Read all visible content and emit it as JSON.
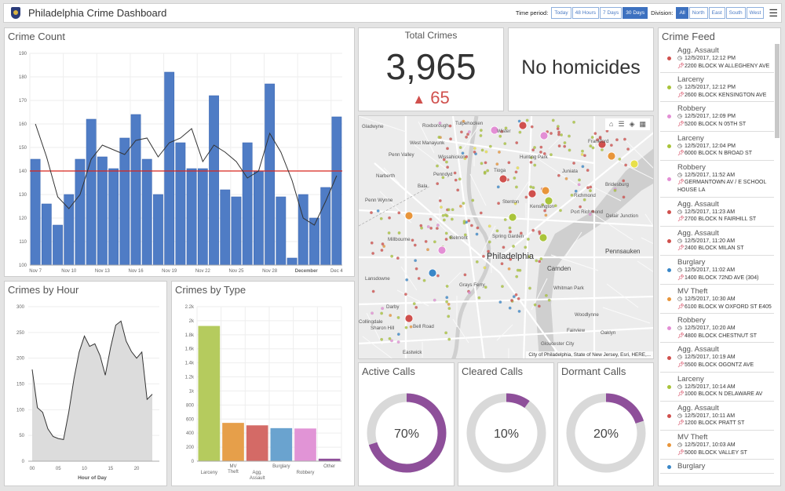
{
  "header": {
    "title": "Philadelphia Crime Dashboard",
    "time_label": "Time period:",
    "time_options": [
      "Today",
      "48 Hours",
      "7 Days",
      "30 Days"
    ],
    "time_selected": "30 Days",
    "division_label": "Division:",
    "division_options": [
      "All",
      "North",
      "East",
      "South",
      "West"
    ],
    "division_selected": "All",
    "menu_icon": "hamburger-icon",
    "logo_icon": "police-badge-icon"
  },
  "total": {
    "title": "Total Crimes",
    "value": "3,965",
    "change": "65",
    "change_icon": "triangle-up-icon",
    "change_color": "#d0504d"
  },
  "homicides": {
    "text": "No homicides"
  },
  "gauges": [
    {
      "title": "Active Calls",
      "value": 70,
      "label": "70%"
    },
    {
      "title": "Cleared Calls",
      "value": 10,
      "label": "10%"
    },
    {
      "title": "Dormant Calls",
      "value": 20,
      "label": "20%"
    }
  ],
  "gauge_color": "#8e4f9a",
  "map": {
    "labels": [
      "Gladwyne",
      "Roxborough",
      "Tulpehocken",
      "Wister",
      "West Manayunk",
      "Penn Valley",
      "Wissahickon",
      "Frankford",
      "Hunting Park",
      "Narberth",
      "Tioga",
      "Juniata",
      "Penndyd",
      "Bala",
      "Bridesburg",
      "Richmond",
      "Penn Wynne",
      "Stenton",
      "Kensington",
      "Port Richmond",
      "Delair Junction",
      "Millbourne",
      "Belmont",
      "Spring Garden",
      "Philadelphia",
      "Pennsauken",
      "Camden",
      "Lansdowne",
      "Grays Ferry",
      "Whitman Park",
      "Darby",
      "Woodlynne",
      "Collingdale",
      "Sharon Hill",
      "Bell Road",
      "Fairview",
      "Oaklyn",
      "Gloucester City",
      "Eastwick"
    ],
    "attribution": "City of Philadelphia, State of New Jersey, Esri, HERE,...",
    "tools": [
      "home-icon",
      "legend-icon",
      "layers-icon",
      "basemap-icon"
    ]
  },
  "feed": {
    "title": "Crime Feed",
    "items": [
      {
        "type": "Agg. Assault",
        "time": "12/5/2017, 12:12 PM",
        "addr": "2200 BLOCK W ALLEGHENY AVE",
        "color": "#d0504d"
      },
      {
        "type": "Larceny",
        "time": "12/5/2017, 12:12 PM",
        "addr": "2600 BLOCK KENSINGTON AVE",
        "color": "#a9c43a"
      },
      {
        "type": "Robbery",
        "time": "12/5/2017, 12:09 PM",
        "addr": "5200 BLOCK N 05TH ST",
        "color": "#e38fd5"
      },
      {
        "type": "Larceny",
        "time": "12/5/2017, 12:04 PM",
        "addr": "6000 BLOCK N BROAD ST",
        "color": "#a9c43a"
      },
      {
        "type": "Robbery",
        "time": "12/5/2017, 11:52 AM",
        "addr": "GERMANTOWN AV / E SCHOOL HOUSE LA",
        "color": "#e38fd5"
      },
      {
        "type": "Agg. Assault",
        "time": "12/5/2017, 11:23 AM",
        "addr": "2700 BLOCK N FAIRHILL ST",
        "color": "#d0504d"
      },
      {
        "type": "Agg. Assault",
        "time": "12/5/2017, 11:20 AM",
        "addr": "2400 BLOCK MILAN ST",
        "color": "#d0504d"
      },
      {
        "type": "Burglary",
        "time": "12/5/2017, 11:02 AM",
        "addr": "1400 BLOCK 72ND AVE (304)",
        "color": "#3a87c8"
      },
      {
        "type": "MV Theft",
        "time": "12/5/2017, 10:30 AM",
        "addr": "6100 BLOCK W OXFORD ST E405",
        "color": "#e8953a"
      },
      {
        "type": "Robbery",
        "time": "12/5/2017, 10:20 AM",
        "addr": "4800 BLOCK CHESTNUT ST",
        "color": "#e38fd5"
      },
      {
        "type": "Agg. Assault",
        "time": "12/5/2017, 10:19 AM",
        "addr": "5500 BLOCK OGONTZ AVE",
        "color": "#d0504d"
      },
      {
        "type": "Larceny",
        "time": "12/5/2017, 10:14 AM",
        "addr": "1000 BLOCK N DELAWARE AV",
        "color": "#a9c43a"
      },
      {
        "type": "Agg. Assault",
        "time": "12/5/2017, 10:11 AM",
        "addr": "1200 BLOCK PRATT ST",
        "color": "#d0504d"
      },
      {
        "type": "MV Theft",
        "time": "12/5/2017, 10:03 AM",
        "addr": "5000 BLOCK VALLEY ST",
        "color": "#e8953a"
      },
      {
        "type": "Burglary",
        "time": "",
        "addr": "",
        "color": "#3a87c8"
      }
    ]
  },
  "chart_data": [
    {
      "id": "crime-count",
      "type": "bar",
      "title": "Crime Count",
      "categories": [
        "Nov 7",
        "Nov 8",
        "Nov 9",
        "Nov 10",
        "Nov 11",
        "Nov 12",
        "Nov 13",
        "Nov 14",
        "Nov 15",
        "Nov 16",
        "Nov 17",
        "Nov 18",
        "Nov 19",
        "Nov 20",
        "Nov 21",
        "Nov 22",
        "Nov 23",
        "Nov 24",
        "Nov 25",
        "Nov 26",
        "Nov 27",
        "Nov 28",
        "Nov 29",
        "Nov 30",
        "Dec 1",
        "Dec 2",
        "Dec 3",
        "Dec 4"
      ],
      "tick_labels": [
        "Nov 7",
        "Nov 10",
        "Nov 13",
        "Nov 16",
        "Nov 19",
        "Nov 22",
        "Nov 25",
        "Nov 28",
        "December",
        "Dec 4"
      ],
      "values": [
        145,
        126,
        117,
        130,
        145,
        162,
        146,
        141,
        154,
        164,
        145,
        130,
        182,
        152,
        141,
        141,
        172,
        132,
        129,
        152,
        140,
        177,
        129,
        103,
        130,
        120,
        133,
        163
      ],
      "line": [
        160,
        146,
        129,
        124,
        130,
        145,
        151,
        149,
        147,
        153,
        154,
        146,
        152,
        154,
        158,
        144,
        151,
        148,
        144,
        137,
        140,
        156,
        148,
        136,
        120,
        117,
        127,
        138
      ],
      "reference_line": 140,
      "ylim": [
        100,
        190
      ],
      "yticks": [
        100,
        110,
        120,
        130,
        140,
        150,
        160,
        170,
        180,
        190
      ],
      "grid": true,
      "bar_color": "#4f7cc5",
      "line_color": "#333333",
      "reference_color": "#d7261e"
    },
    {
      "id": "crimes-by-hour",
      "type": "area",
      "title": "Crimes by Hour",
      "xlabel": "Hour of Day",
      "x": [
        0,
        1,
        2,
        3,
        4,
        5,
        6,
        7,
        8,
        9,
        10,
        11,
        12,
        13,
        14,
        15,
        16,
        17,
        18,
        19,
        20,
        21,
        22,
        23
      ],
      "values": [
        178,
        104,
        95,
        63,
        48,
        44,
        42,
        95,
        160,
        212,
        243,
        223,
        228,
        205,
        167,
        220,
        264,
        272,
        233,
        213,
        200,
        212,
        120,
        130
      ],
      "xticks": [
        "00",
        "05",
        "10",
        "15",
        "20"
      ],
      "ylim": [
        0,
        300
      ],
      "yticks": [
        0,
        50,
        100,
        150,
        200,
        250,
        300
      ],
      "grid": true,
      "fill": "#dcdcdc"
    },
    {
      "id": "crimes-by-type",
      "type": "bar",
      "title": "Crimes by Type",
      "categories": [
        "Larceny",
        "MV Theft",
        "Agg. Assault",
        "Burglary",
        "Robbery",
        "Other"
      ],
      "values": [
        1920,
        540,
        505,
        465,
        460,
        30
      ],
      "colors": [
        "#b5cb5e",
        "#e69f4a",
        "#d46a66",
        "#6aa3cf",
        "#e194d6",
        "#8e4f9a"
      ],
      "ylim": [
        0,
        2200
      ],
      "yticks": [
        "0",
        "200",
        "400",
        "600",
        "800",
        "1k",
        "1.2k",
        "1.4k",
        "1.6k",
        "1.8k",
        "2k",
        "2.2k"
      ],
      "grid": true
    }
  ]
}
